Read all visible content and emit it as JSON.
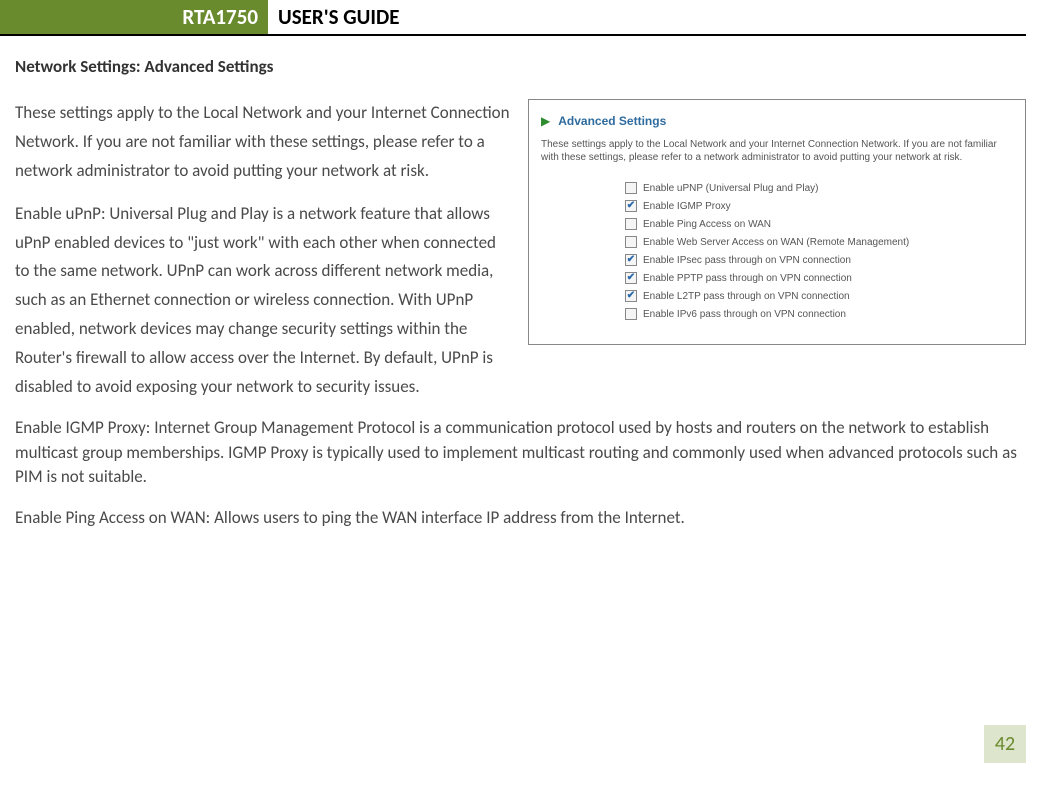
{
  "header": {
    "model": "RTA1750",
    "title": "USER'S GUIDE"
  },
  "section_title": "Network Settings: Advanced Settings",
  "paragraphs": {
    "p1": "These settings apply to the Local Network and your Internet Connection Network.  If you are not familiar with these settings, please refer to a network administrator to avoid putting your network at risk.",
    "p2": "Enable uPnP: Universal Plug and Play is a network feature that allows uPnP enabled devices to \"just work\" with each other when connected to the same network.  UPnP can work across different network media, such as an Ethernet connection or wireless connection.  With UPnP enabled, network devices may change security settings within the Router's firewall to allow access over the Internet.  By default, UPnP is disabled to avoid exposing your network to security issues.",
    "p3": "Enable IGMP Proxy: Internet Group Management Protocol is a communication protocol used by hosts and routers on the network to establish multicast group memberships.  IGMP Proxy is typically used to implement multicast routing and commonly used when advanced protocols such as PIM is not suitable.",
    "p4": "Enable Ping Access on WAN: Allows users to ping the WAN interface IP address from the Internet."
  },
  "screenshot_panel": {
    "title": "Advanced Settings",
    "description": "These settings apply to the Local Network and your Internet Connection Network.  If you are not familiar with these settings, please refer to a network administrator to avoid putting your network at risk.",
    "options": [
      {
        "label": "Enable uPNP (Universal Plug and Play)",
        "checked": false
      },
      {
        "label": "Enable IGMP Proxy",
        "checked": true
      },
      {
        "label": "Enable Ping Access on WAN",
        "checked": false
      },
      {
        "label": "Enable Web Server Access on WAN (Remote Management)",
        "checked": false
      },
      {
        "label": "Enable IPsec pass through on VPN connection",
        "checked": true
      },
      {
        "label": "Enable PPTP pass through on VPN connection",
        "checked": true
      },
      {
        "label": "Enable L2TP pass through on VPN connection",
        "checked": true
      },
      {
        "label": "Enable IPv6 pass through on VPN connection",
        "checked": false
      }
    ]
  },
  "page_number": "42",
  "colors": {
    "header_green": "#6a8a2e",
    "page_box_bg": "#dde6cc",
    "link_blue": "#2e6b9e",
    "check_blue": "#2a6aaa",
    "arrow_green": "#2e8b2e"
  }
}
